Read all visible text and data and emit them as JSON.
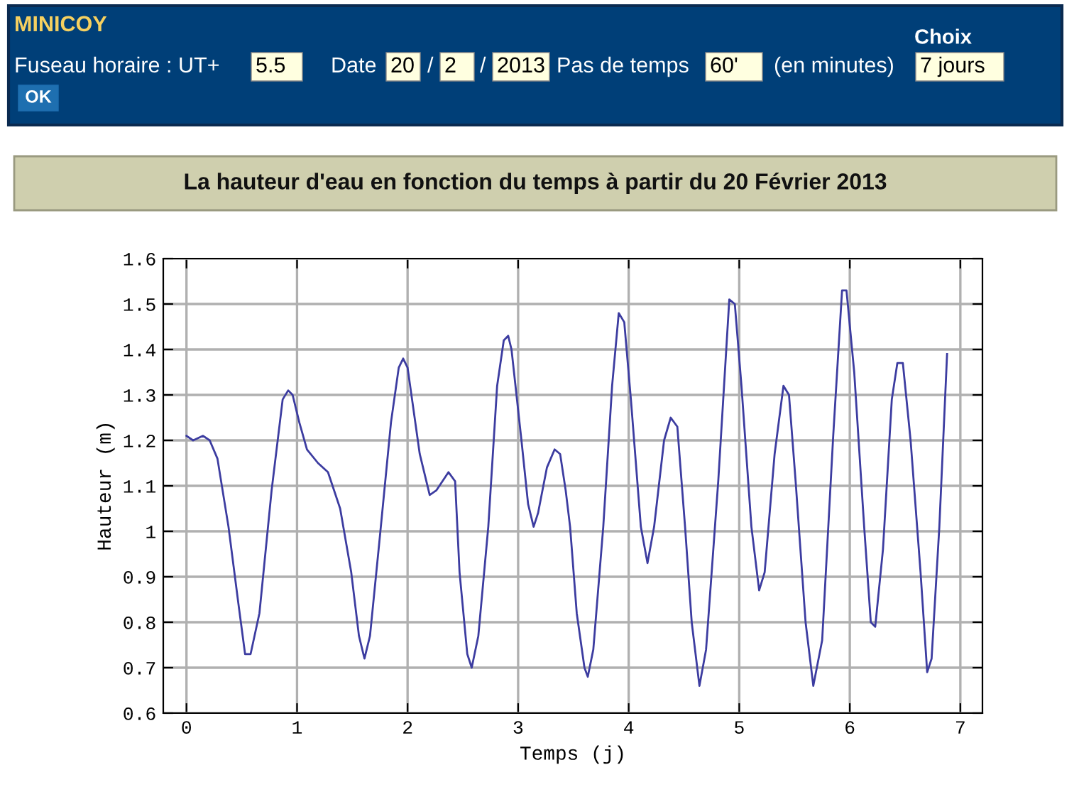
{
  "chart_data": {
    "type": "line",
    "title": "La hauteur d'eau en fonction du temps à partir du 20 Février 2013",
    "xlabel": "Temps (j)",
    "ylabel": "Hauteur (m)",
    "annotations": [
      "MINICOY",
      "Fuseau horaire : UT+",
      "5.5",
      "Date",
      "20",
      "/",
      "2",
      "/",
      "2013",
      "Pas de temps",
      "60'",
      "(en minutes)",
      "Choix",
      "7 jours",
      "OK"
    ],
    "xlim": [
      -0.21,
      7.2
    ],
    "xticks": [
      0,
      1,
      2,
      3,
      4,
      5,
      6,
      7
    ],
    "ylim": [
      0.6,
      1.6
    ],
    "yticks": [
      0.6,
      0.7,
      0.8,
      0.9,
      1,
      1.1,
      1.2,
      1.3,
      1.4,
      1.5,
      1.6
    ],
    "grid": true,
    "marker": "none",
    "line_style": "solid",
    "series": [
      {
        "color": "#3c3ca0",
        "x": [
          0,
          0.06,
          0.15,
          0.21,
          0.28,
          0.38,
          0.47,
          0.53,
          0.58,
          0.66,
          0.77,
          0.87,
          0.92,
          0.96,
          1.02,
          1.09,
          1.19,
          1.28,
          1.39,
          1.49,
          1.56,
          1.61,
          1.66,
          1.75,
          1.85,
          1.92,
          1.96,
          2.0,
          2.11,
          2.2,
          2.26,
          2.37,
          2.43,
          2.47,
          2.54,
          2.58,
          2.64,
          2.73,
          2.81,
          2.87,
          2.91,
          2.94,
          3.03,
          3.09,
          3.14,
          3.18,
          3.26,
          3.33,
          3.38,
          3.43,
          3.47,
          3.53,
          3.6,
          3.63,
          3.68,
          3.77,
          3.85,
          3.91,
          3.96,
          4.02,
          4.11,
          4.17,
          4.23,
          4.32,
          4.38,
          4.44,
          4.51,
          4.57,
          4.64,
          4.7,
          4.81,
          4.91,
          4.96,
          5.02,
          5.11,
          5.18,
          5.23,
          5.32,
          5.4,
          5.45,
          5.51,
          5.6,
          5.67,
          5.75,
          5.85,
          5.93,
          5.97,
          6.04,
          6.13,
          6.19,
          6.23,
          6.3,
          6.38,
          6.43,
          6.48,
          6.55,
          6.64,
          6.7,
          6.74,
          6.81,
          6.88
        ],
        "values": [
          1.21,
          1.2,
          1.21,
          1.2,
          1.16,
          1.01,
          0.84,
          0.73,
          0.73,
          0.82,
          1.09,
          1.29,
          1.31,
          1.3,
          1.24,
          1.18,
          1.15,
          1.13,
          1.05,
          0.91,
          0.77,
          0.72,
          0.77,
          0.99,
          1.24,
          1.36,
          1.38,
          1.36,
          1.17,
          1.08,
          1.09,
          1.13,
          1.11,
          0.91,
          0.73,
          0.7,
          0.77,
          1.01,
          1.32,
          1.42,
          1.43,
          1.4,
          1.2,
          1.06,
          1.01,
          1.04,
          1.14,
          1.18,
          1.17,
          1.09,
          1.01,
          0.82,
          0.7,
          0.68,
          0.74,
          1.01,
          1.32,
          1.48,
          1.46,
          1.29,
          1.01,
          0.93,
          1.01,
          1.2,
          1.25,
          1.23,
          1.01,
          0.8,
          0.66,
          0.74,
          1.11,
          1.51,
          1.5,
          1.32,
          1.01,
          0.87,
          0.91,
          1.17,
          1.32,
          1.3,
          1.11,
          0.8,
          0.66,
          0.76,
          1.21,
          1.53,
          1.53,
          1.35,
          1.01,
          0.8,
          0.79,
          0.96,
          1.29,
          1.37,
          1.37,
          1.2,
          0.91,
          0.69,
          0.72,
          1.01,
          1.39
        ]
      }
    ]
  }
}
